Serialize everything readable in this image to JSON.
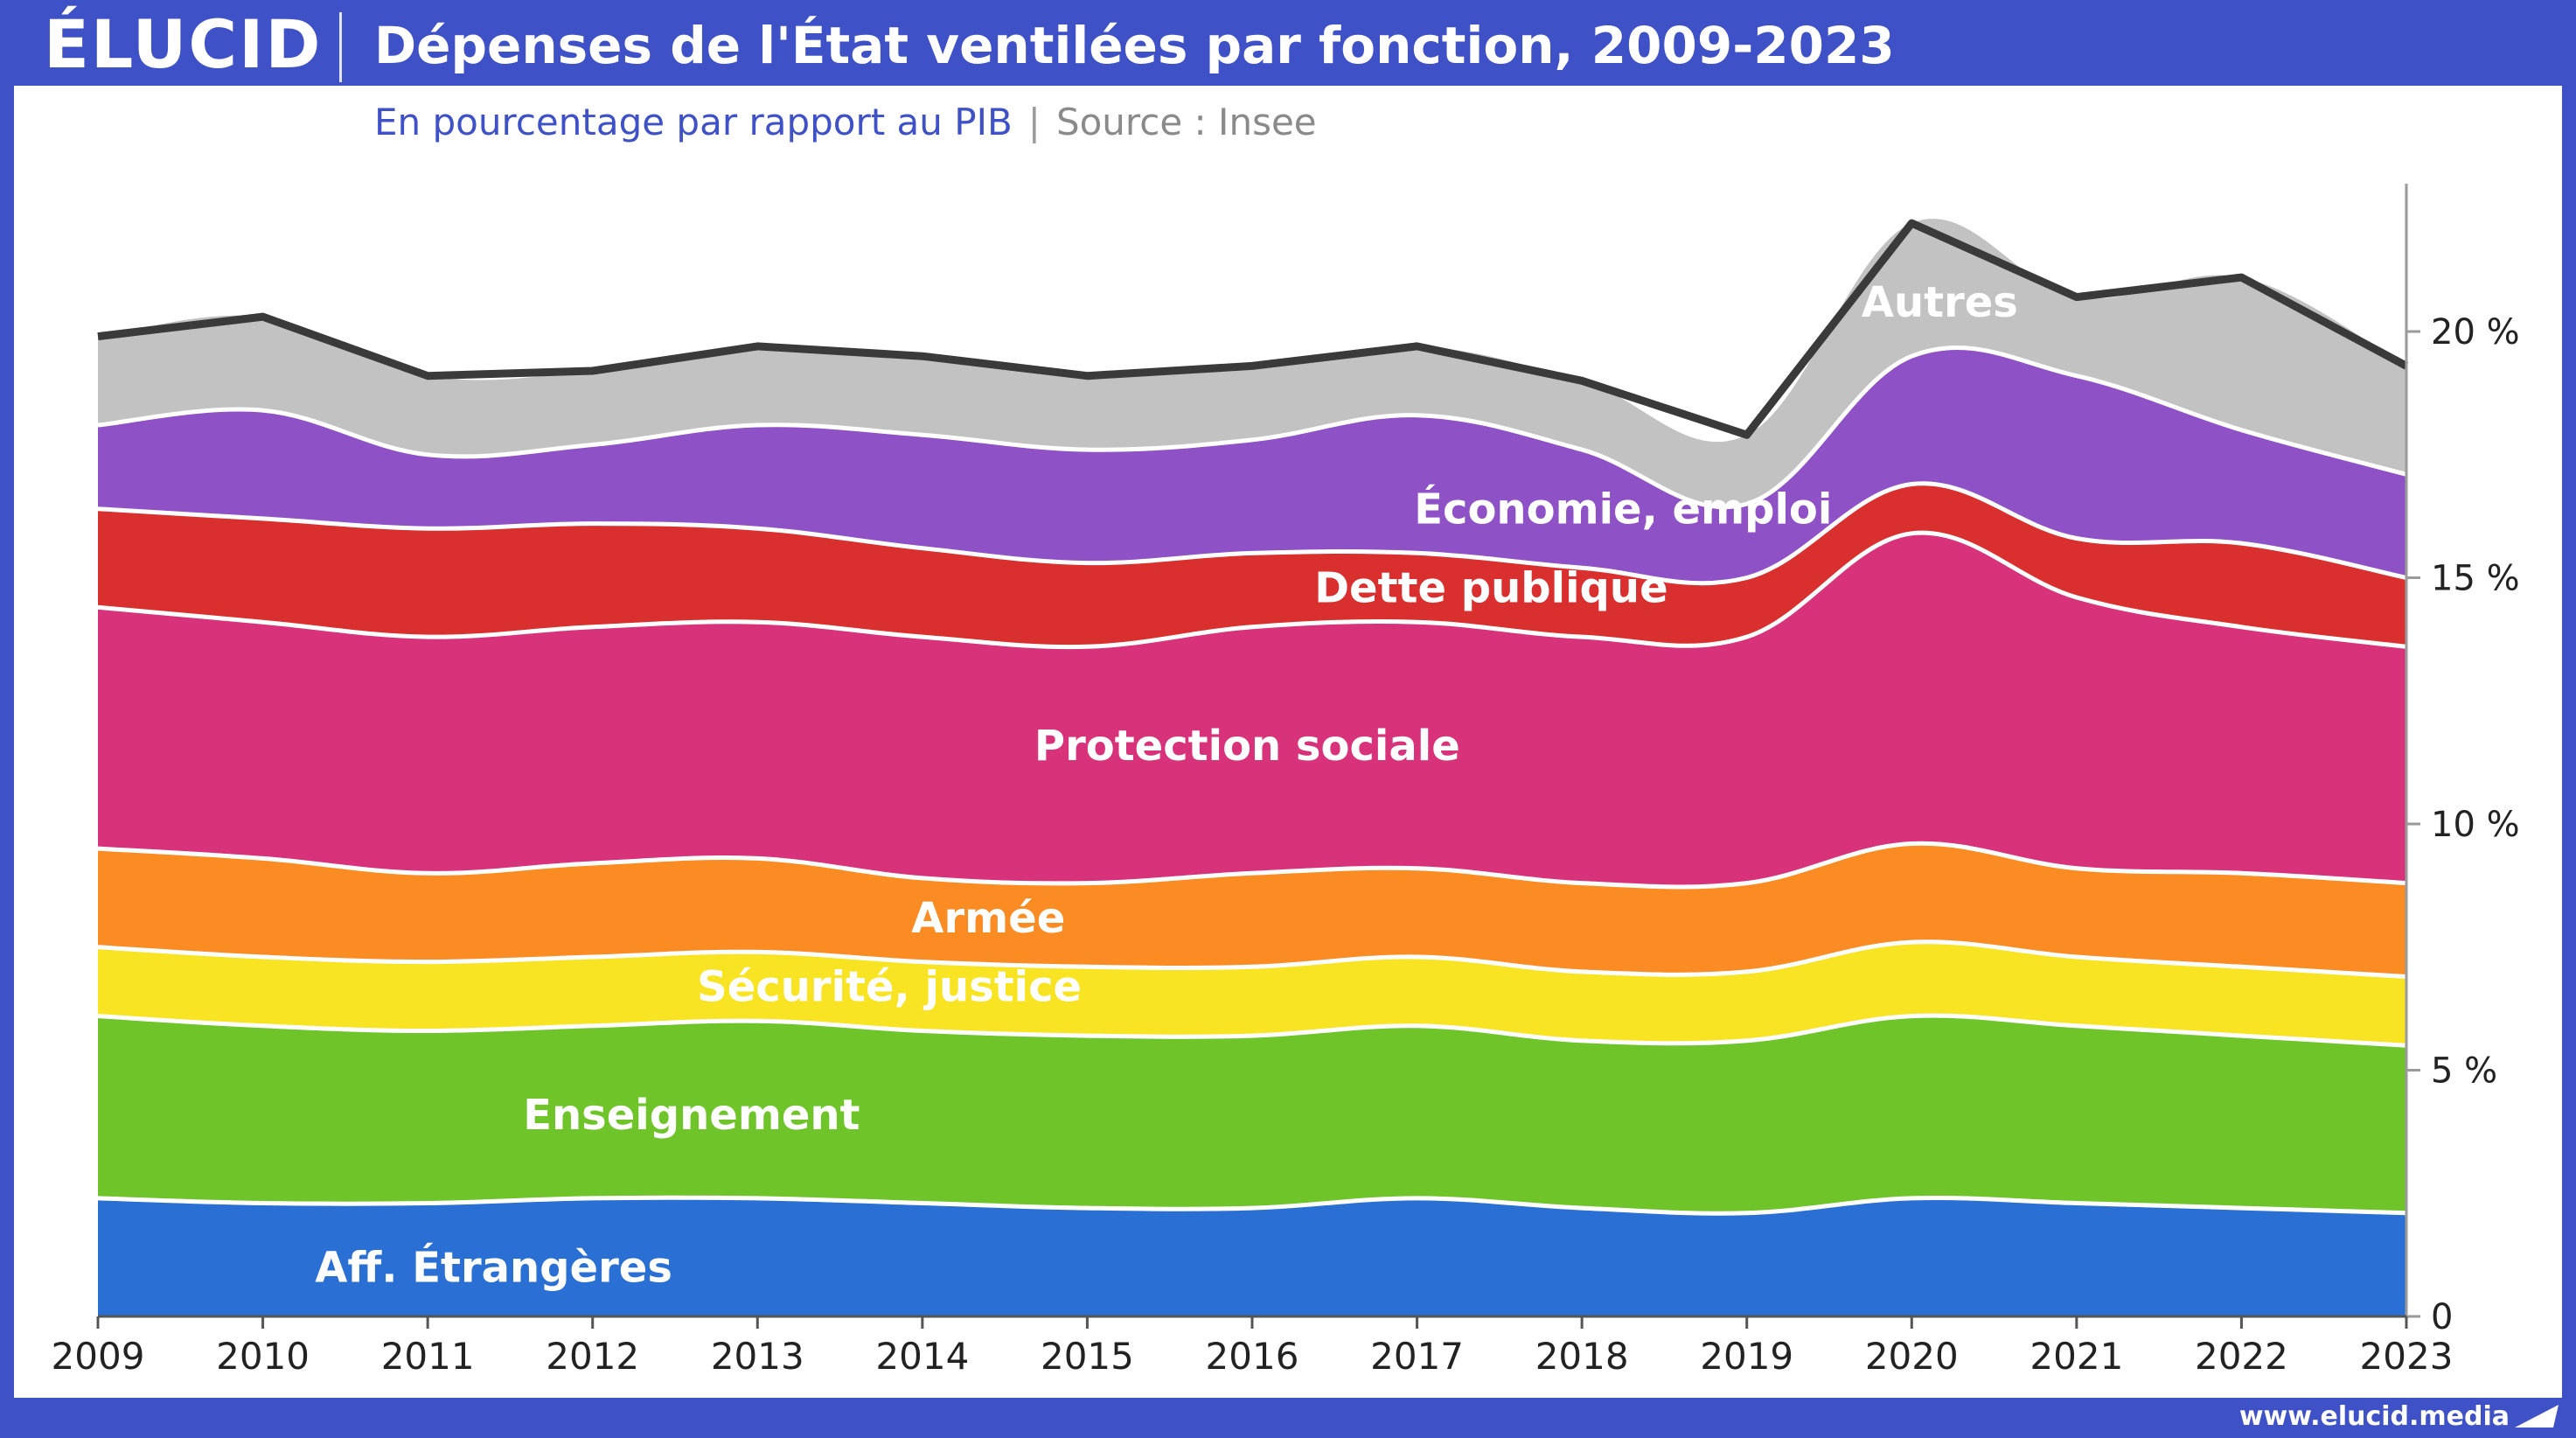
{
  "header": {
    "logo": "ÉLUCID",
    "title": "Dépenses de l'État ventilées par fonction, 2009-2023",
    "subtitle_main": "En pourcentage par rapport au PIB",
    "subtitle_sep": "|",
    "subtitle_source": "Source : Insee"
  },
  "footer": {
    "url": "www.elucid.media"
  },
  "chart_data": {
    "type": "area",
    "stacked": true,
    "title": "Dépenses de l'État ventilées par fonction, 2009-2023",
    "subtitle": "En pourcentage par rapport au PIB",
    "x": [
      2009,
      2010,
      2011,
      2012,
      2013,
      2014,
      2015,
      2016,
      2017,
      2018,
      2019,
      2020,
      2021,
      2022,
      2023
    ],
    "ylim": [
      0,
      23
    ],
    "yticks": [
      0,
      5,
      10,
      15,
      20
    ],
    "ytick_labels": [
      "0",
      "5 %",
      "10 %",
      "15 %",
      "20 %"
    ],
    "y_axis_side": "right",
    "series": [
      {
        "name": "Aff. Étrangères",
        "color": "#2a6fd4",
        "values": [
          2.4,
          2.3,
          2.3,
          2.4,
          2.4,
          2.3,
          2.2,
          2.2,
          2.4,
          2.2,
          2.1,
          2.4,
          2.3,
          2.2,
          2.1
        ]
      },
      {
        "name": "Enseignement",
        "color": "#6fc42a",
        "values": [
          3.7,
          3.6,
          3.5,
          3.5,
          3.6,
          3.5,
          3.5,
          3.5,
          3.5,
          3.4,
          3.5,
          3.7,
          3.6,
          3.5,
          3.4
        ]
      },
      {
        "name": "Sécurité, justice",
        "color": "#f8e423",
        "values": [
          1.4,
          1.4,
          1.4,
          1.4,
          1.4,
          1.4,
          1.4,
          1.4,
          1.4,
          1.4,
          1.4,
          1.5,
          1.4,
          1.4,
          1.4
        ]
      },
      {
        "name": "Armée",
        "color": "#fb8c23",
        "values": [
          2.0,
          2.0,
          1.8,
          1.9,
          1.9,
          1.7,
          1.7,
          1.9,
          1.8,
          1.8,
          1.8,
          2.0,
          1.8,
          1.9,
          1.9
        ]
      },
      {
        "name": "Protection sociale",
        "color": "#d8337a",
        "values": [
          4.9,
          4.8,
          4.8,
          4.8,
          4.8,
          4.9,
          4.8,
          5.0,
          5.0,
          5.0,
          5.0,
          6.3,
          5.5,
          5.0,
          4.8
        ]
      },
      {
        "name": "Dette publique",
        "color": "#da2f2f",
        "values": [
          2.0,
          2.1,
          2.2,
          2.1,
          1.9,
          1.8,
          1.7,
          1.5,
          1.4,
          1.4,
          1.2,
          1.0,
          1.2,
          1.7,
          1.4
        ]
      },
      {
        "name": "Économie, emploi",
        "color": "#8e52c6",
        "values": [
          1.7,
          2.2,
          1.5,
          1.6,
          2.1,
          2.3,
          2.3,
          2.3,
          2.8,
          2.4,
          1.5,
          2.6,
          3.3,
          2.3,
          2.1
        ]
      },
      {
        "name": "Autres",
        "color": "#c2c2c2",
        "values": [
          1.8,
          1.9,
          1.6,
          1.5,
          1.6,
          1.6,
          1.5,
          1.5,
          1.4,
          1.4,
          1.4,
          2.7,
          1.6,
          3.1,
          2.2
        ]
      }
    ],
    "inline_labels": [
      {
        "series": "Aff. Étrangères",
        "text": "Aff. Étrangères",
        "x": 2011.4,
        "y": 0.7
      },
      {
        "series": "Enseignement",
        "text": "Enseignement",
        "x": 2012.6,
        "y": 3.8
      },
      {
        "series": "Sécurité, justice",
        "text": "Sécurité, justice",
        "x": 2013.8,
        "y": 6.4
      },
      {
        "series": "Armée",
        "text": "Armée",
        "x": 2014.4,
        "y": 7.8
      },
      {
        "series": "Protection sociale",
        "text": "Protection sociale",
        "x": 2015.97,
        "y": 11.3
      },
      {
        "series": "Dette publique",
        "text": "Dette publique",
        "x": 2017.45,
        "y": 14.5
      },
      {
        "series": "Économie, emploi",
        "text": "Économie, emploi",
        "x": 2018.25,
        "y": 16.1
      },
      {
        "series": "Autres",
        "text": "Autres",
        "x": 2020.17,
        "y": 20.3
      }
    ],
    "total_line_color": "#3a3a3a"
  }
}
